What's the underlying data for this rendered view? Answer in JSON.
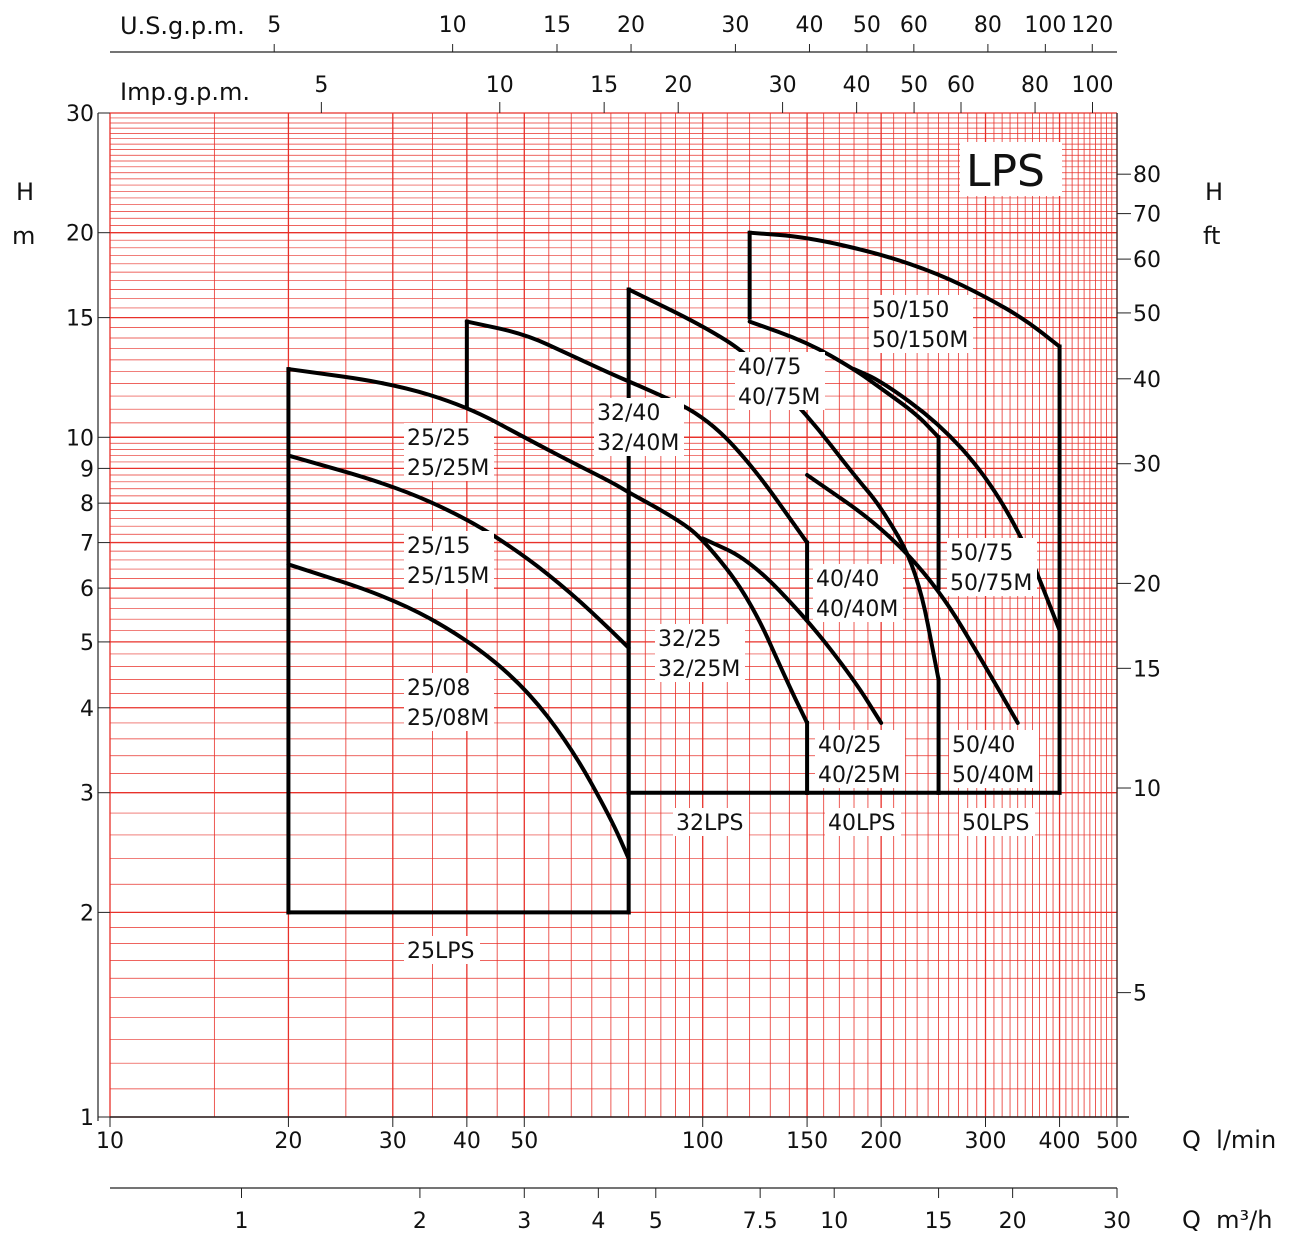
{
  "chart_data": {
    "type": "line",
    "title": "LPS",
    "x_scale": "log",
    "y_scale": "log",
    "x_range": [
      10,
      500
    ],
    "y_range": [
      1,
      30
    ],
    "axes": {
      "bottom_flow_lmin": {
        "label": "Q  l/min",
        "ticks": [
          {
            "v": 10,
            "t": "10"
          },
          {
            "v": 20,
            "t": "20"
          },
          {
            "v": 30,
            "t": "30"
          },
          {
            "v": 40,
            "t": "40"
          },
          {
            "v": 50,
            "t": "50"
          },
          {
            "v": 100,
            "t": "100"
          },
          {
            "v": 150,
            "t": "150"
          },
          {
            "v": 200,
            "t": "200"
          },
          {
            "v": 300,
            "t": "300"
          },
          {
            "v": 400,
            "t": "400"
          },
          {
            "v": 500,
            "t": "500"
          }
        ]
      },
      "bottom_flow_m3h": {
        "label": "Q  m³/h",
        "ticks": [
          {
            "v": 1,
            "t": "1"
          },
          {
            "v": 2,
            "t": "2"
          },
          {
            "v": 3,
            "t": "3"
          },
          {
            "v": 4,
            "t": "4"
          },
          {
            "v": 5,
            "t": "5"
          },
          {
            "v": 7.5,
            "t": "7.5"
          },
          {
            "v": 10,
            "t": "10"
          },
          {
            "v": 15,
            "t": "15"
          },
          {
            "v": 20,
            "t": "20"
          },
          {
            "v": 30,
            "t": "30"
          }
        ]
      },
      "top_us_gpm": {
        "label": "U.S.g.p.m.",
        "ticks": [
          {
            "v": 5,
            "t": "5"
          },
          {
            "v": 10,
            "t": "10"
          },
          {
            "v": 15,
            "t": "15"
          },
          {
            "v": 20,
            "t": "20"
          },
          {
            "v": 30,
            "t": "30"
          },
          {
            "v": 40,
            "t": "40"
          },
          {
            "v": 50,
            "t": "50"
          },
          {
            "v": 60,
            "t": "60"
          },
          {
            "v": 80,
            "t": "80"
          },
          {
            "v": 100,
            "t": "100"
          },
          {
            "v": 120,
            "t": "120"
          }
        ]
      },
      "top_imp_gpm": {
        "label": "Imp.g.p.m.",
        "ticks": [
          {
            "v": 5,
            "t": "5"
          },
          {
            "v": 10,
            "t": "10"
          },
          {
            "v": 15,
            "t": "15"
          },
          {
            "v": 20,
            "t": "20"
          },
          {
            "v": 30,
            "t": "30"
          },
          {
            "v": 40,
            "t": "40"
          },
          {
            "v": 50,
            "t": "50"
          },
          {
            "v": 60,
            "t": "60"
          },
          {
            "v": 80,
            "t": "80"
          },
          {
            "v": 100,
            "t": "100"
          }
        ]
      },
      "left_head_m": {
        "label_top": "H",
        "label_bottom": "m",
        "ticks": [
          {
            "v": 1,
            "t": "1"
          },
          {
            "v": 2,
            "t": "2"
          },
          {
            "v": 3,
            "t": "3"
          },
          {
            "v": 4,
            "t": "4"
          },
          {
            "v": 5,
            "t": "5"
          },
          {
            "v": 6,
            "t": "6"
          },
          {
            "v": 7,
            "t": "7"
          },
          {
            "v": 8,
            "t": "8"
          },
          {
            "v": 9,
            "t": "9"
          },
          {
            "v": 10,
            "t": "10"
          },
          {
            "v": 15,
            "t": "15"
          },
          {
            "v": 20,
            "t": "20"
          },
          {
            "v": 30,
            "t": "30"
          }
        ]
      },
      "right_head_ft": {
        "label_top": "H",
        "label_bottom": "ft",
        "ticks": [
          {
            "v": 5,
            "t": "5"
          },
          {
            "v": 10,
            "t": "10"
          },
          {
            "v": 15,
            "t": "15"
          },
          {
            "v": 20,
            "t": "20"
          },
          {
            "v": 30,
            "t": "30"
          },
          {
            "v": 40,
            "t": "40"
          },
          {
            "v": 50,
            "t": "50"
          },
          {
            "v": 60,
            "t": "60"
          },
          {
            "v": 70,
            "t": "70"
          },
          {
            "v": 80,
            "t": "80"
          }
        ]
      }
    },
    "series": [
      {
        "name": "25/08 25/08M",
        "x": [
          20,
          30,
          40,
          50,
          60,
          70,
          75
        ],
        "y": [
          6.5,
          5.8,
          5.05,
          4.3,
          3.5,
          2.75,
          2.4
        ]
      },
      {
        "name": "25/15 25/15M",
        "x": [
          20,
          30,
          40,
          50,
          60,
          70,
          75
        ],
        "y": [
          9.4,
          8.5,
          7.6,
          6.7,
          5.9,
          5.2,
          4.9
        ]
      },
      {
        "name": "25/25 25/25M",
        "x": [
          20,
          30,
          40,
          50,
          60,
          70,
          75
        ],
        "y": [
          12.6,
          12.0,
          11.1,
          10.0,
          9.2,
          8.6,
          8.3
        ]
      },
      {
        "name": "32/25 32/25M",
        "x": [
          75,
          90,
          100,
          120,
          140,
          150
        ],
        "y": [
          8.3,
          7.6,
          7.1,
          5.8,
          4.3,
          3.8
        ]
      },
      {
        "name": "32/40 32/40M",
        "x": [
          40,
          50,
          60,
          70,
          80,
          100,
          120,
          150
        ],
        "y": [
          14.8,
          14.2,
          13.2,
          12.4,
          11.8,
          10.8,
          9.2,
          7.0
        ]
      },
      {
        "name": "40/25 40/25M",
        "x": [
          100,
          120,
          150,
          180,
          200
        ],
        "y": [
          7.1,
          6.6,
          5.4,
          4.4,
          3.8
        ]
      },
      {
        "name": "40/40 40/40M",
        "x": [
          75,
          100,
          120,
          150,
          180,
          200,
          230,
          250
        ],
        "y": [
          16.5,
          14.6,
          13.2,
          10.8,
          8.8,
          7.9,
          6.4,
          4.4
        ]
      },
      {
        "name": "40/75 40/75M",
        "x": [
          120,
          150,
          180,
          200,
          230,
          250
        ],
        "y": [
          14.8,
          13.8,
          12.6,
          11.8,
          10.8,
          10.0
        ]
      },
      {
        "name": "50/40 50/40M",
        "x": [
          150,
          200,
          250,
          300,
          340
        ],
        "y": [
          8.8,
          7.4,
          6.0,
          4.6,
          3.8
        ]
      },
      {
        "name": "50/75 50/75M",
        "x": [
          180,
          200,
          250,
          300,
          350,
          400
        ],
        "y": [
          12.6,
          12.1,
          10.5,
          8.8,
          7.0,
          5.2
        ]
      },
      {
        "name": "50/150 50/150M",
        "x": [
          120,
          150,
          200,
          250,
          300,
          350,
          400
        ],
        "y": [
          20.0,
          19.7,
          18.6,
          17.4,
          16.1,
          14.9,
          13.6
        ]
      }
    ],
    "boxes": [
      {
        "name": "25LPS",
        "label": "25LPS"
      },
      {
        "name": "32LPS",
        "label": "32LPS"
      },
      {
        "name": "40LPS",
        "label": "40LPS"
      },
      {
        "name": "50LPS",
        "label": "50LPS"
      }
    ],
    "series_labels": [
      {
        "key": "l2508",
        "line1": "25/08",
        "line2": "25/08M"
      },
      {
        "key": "l2515",
        "line1": "25/15",
        "line2": "25/15M"
      },
      {
        "key": "l2525",
        "line1": "25/25",
        "line2": "25/25M"
      },
      {
        "key": "l3225",
        "line1": "32/25",
        "line2": "32/25M"
      },
      {
        "key": "l3240",
        "line1": "32/40",
        "line2": "32/40M"
      },
      {
        "key": "l4025",
        "line1": "40/25",
        "line2": "40/25M"
      },
      {
        "key": "l4040",
        "line1": "40/40",
        "line2": "40/40M"
      },
      {
        "key": "l4075",
        "line1": "40/75",
        "line2": "40/75M"
      },
      {
        "key": "l5040",
        "line1": "50/40",
        "line2": "50/40M"
      },
      {
        "key": "l5075",
        "line1": "50/75",
        "line2": "50/75M"
      },
      {
        "key": "l50150",
        "line1": "50/150",
        "line2": "50/150M"
      }
    ],
    "grid": true,
    "grid_color": "#e8312a",
    "curve_color": "#000000"
  }
}
